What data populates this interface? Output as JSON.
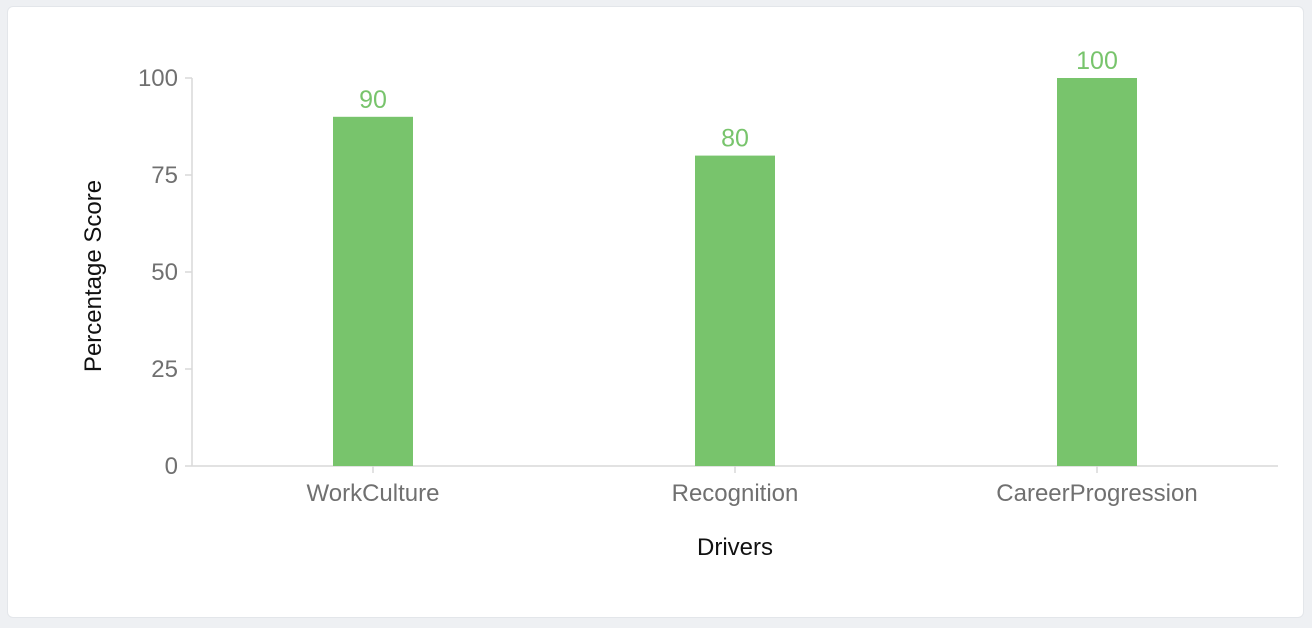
{
  "chart_data": {
    "type": "bar",
    "title": "",
    "xlabel": "Drivers",
    "ylabel": "Percentage Score",
    "categories": [
      "WorkCulture",
      "Recognition",
      "CareerProgression"
    ],
    "values": [
      90,
      80,
      100
    ],
    "data_labels": [
      "90",
      "80",
      "100"
    ],
    "ylim": [
      0,
      100
    ],
    "yticks": [
      0,
      25,
      50,
      75,
      100
    ],
    "ytick_labels": [
      "0",
      "25",
      "50",
      "75",
      "100"
    ],
    "grid": false,
    "legend": "none",
    "colors": {
      "bar": "#78c46c",
      "label": "#78c46c",
      "axis": "#d9d9d9"
    }
  }
}
